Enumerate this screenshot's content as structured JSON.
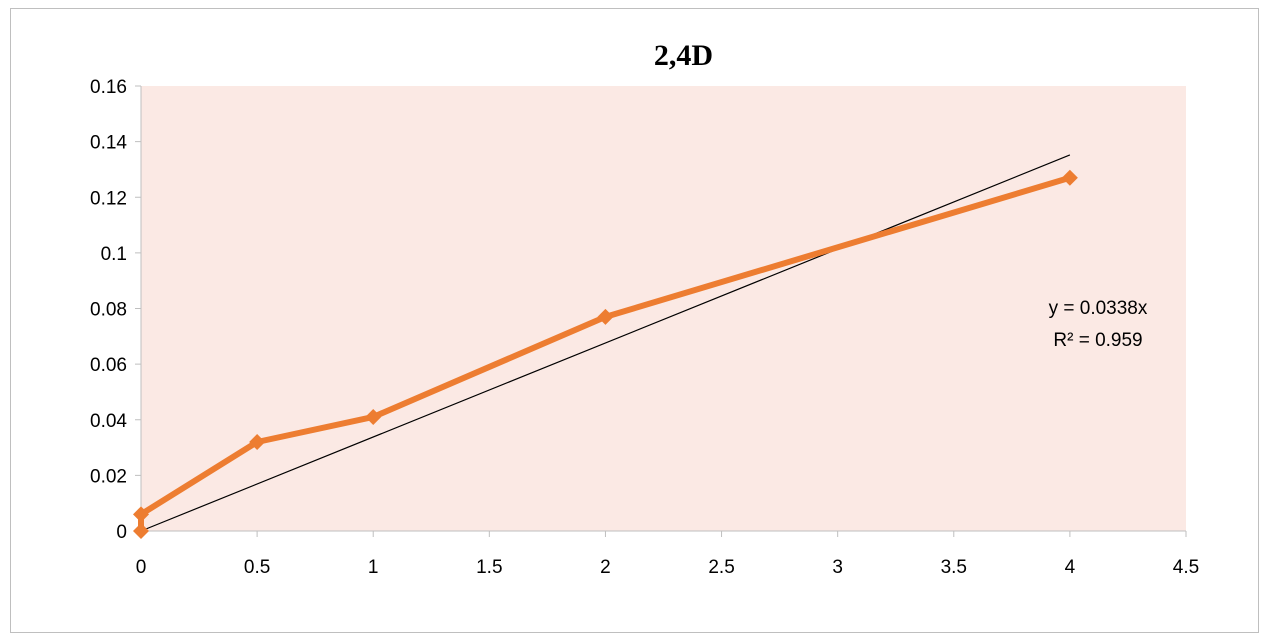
{
  "chart_data": {
    "type": "line",
    "title": "2,4D",
    "xlabel": "",
    "ylabel": "",
    "xlim": [
      0,
      4.5
    ],
    "ylim": [
      0,
      0.16
    ],
    "x_ticks": [
      "0",
      "0.5",
      "1",
      "1.5",
      "2",
      "2.5",
      "3",
      "3.5",
      "4",
      "4.5"
    ],
    "y_ticks": [
      "0",
      "0.02",
      "0.04",
      "0.06",
      "0.08",
      "0.1",
      "0.12",
      "0.14",
      "0.16"
    ],
    "grid": false,
    "legend": "none",
    "series": [
      {
        "color": "#ed7d31",
        "marker": "diamond",
        "points": [
          {
            "x": 0,
            "y": 0.0
          },
          {
            "x": 0,
            "y": 0.006
          },
          {
            "x": 0.5,
            "y": 0.032
          },
          {
            "x": 1,
            "y": 0.041
          },
          {
            "x": 2,
            "y": 0.077
          },
          {
            "x": 4,
            "y": 0.127
          }
        ]
      }
    ],
    "trendline": {
      "type": "linear",
      "slope": 0.0338,
      "intercept": 0,
      "x_range": [
        0,
        4
      ],
      "color": "#000000",
      "equation_label": "y = 0.0338x",
      "r2_label": "R² = 0.959"
    },
    "plot_background": "#fbe9e4"
  }
}
